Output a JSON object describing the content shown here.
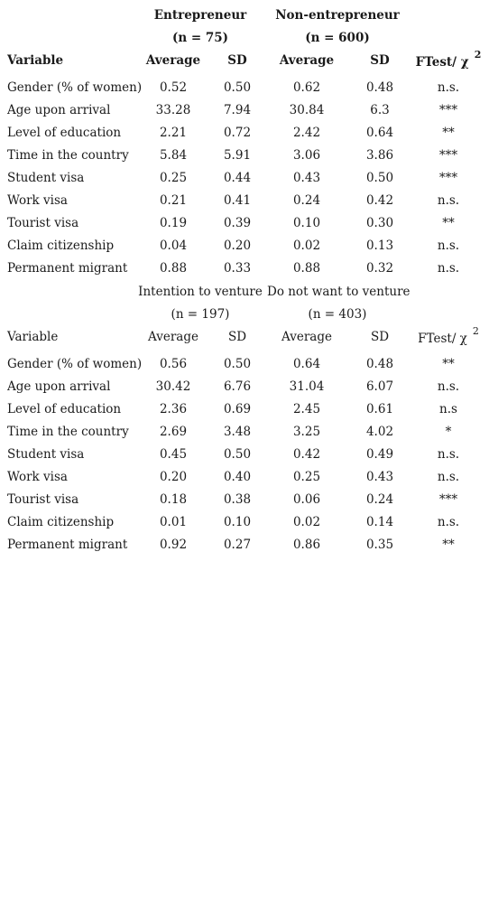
{
  "table1": {
    "group1_name": "Entrepreneur",
    "group1_n": "(n = 75)",
    "group2_name": "Non-entrepreneur",
    "group2_n": "(n = 600)",
    "headers": {
      "variable": "Variable",
      "avg1": "Average",
      "sd1": "SD",
      "avg2": "Average",
      "sd2": "SD",
      "ftest": "FTest/ χ",
      "ftest_sup": "2"
    },
    "rows": [
      {
        "variable": "Gender (% of women)",
        "avg1": "0.52",
        "sd1": "0.50",
        "avg2": "0.62",
        "sd2": "0.48",
        "ftest": "n.s."
      },
      {
        "variable": "Age upon arrival",
        "avg1": "33.28",
        "sd1": "7.94",
        "avg2": "30.84",
        "sd2": "6.3",
        "ftest": "***"
      },
      {
        "variable": "Level of education",
        "avg1": "2.21",
        "sd1": "0.72",
        "avg2": "2.42",
        "sd2": "0.64",
        "ftest": "**"
      },
      {
        "variable": "Time in the country",
        "avg1": "5.84",
        "sd1": "5.91",
        "avg2": "3.06",
        "sd2": "3.86",
        "ftest": "***"
      },
      {
        "variable": "Student visa",
        "avg1": "0.25",
        "sd1": "0.44",
        "avg2": "0.43",
        "sd2": "0.50",
        "ftest": "***"
      },
      {
        "variable": "Work visa",
        "avg1": "0.21",
        "sd1": "0.41",
        "avg2": "0.24",
        "sd2": "0.42",
        "ftest": "n.s."
      },
      {
        "variable": "Tourist visa",
        "avg1": "0.19",
        "sd1": "0.39",
        "avg2": "0.10",
        "sd2": "0.30",
        "ftest": "**"
      },
      {
        "variable": "Claim citizenship",
        "avg1": "0.04",
        "sd1": "0.20",
        "avg2": "0.02",
        "sd2": "0.13",
        "ftest": "n.s."
      },
      {
        "variable": "Permanent migrant",
        "avg1": "0.88",
        "sd1": "0.33",
        "avg2": "0.88",
        "sd2": "0.32",
        "ftest": "n.s."
      }
    ]
  },
  "table2": {
    "group1_name": "Intention to venture",
    "group1_n": "(n = 197)",
    "group2_name": "Do not want to venture",
    "group2_n": "(n = 403)",
    "headers": {
      "variable": "Variable",
      "avg1": "Average",
      "sd1": "SD",
      "avg2": "Average",
      "sd2": "SD",
      "ftest": "FTest/ χ",
      "ftest_sup": "2"
    },
    "rows": [
      {
        "variable": "Gender (% of women)",
        "avg1": "0.56",
        "sd1": "0.50",
        "avg2": "0.64",
        "sd2": "0.48",
        "ftest": "**"
      },
      {
        "variable": "Age upon arrival",
        "avg1": "30.42",
        "sd1": "6.76",
        "avg2": "31.04",
        "sd2": "6.07",
        "ftest": "n.s."
      },
      {
        "variable": "Level of education",
        "avg1": "2.36",
        "sd1": "0.69",
        "avg2": "2.45",
        "sd2": "0.61",
        "ftest": "n.s"
      },
      {
        "variable": "Time in the country",
        "avg1": "2.69",
        "sd1": "3.48",
        "avg2": "3.25",
        "sd2": "4.02",
        "ftest": "*"
      },
      {
        "variable": "Student visa",
        "avg1": "0.45",
        "sd1": "0.50",
        "avg2": "0.42",
        "sd2": "0.49",
        "ftest": "n.s."
      },
      {
        "variable": "Work visa",
        "avg1": "0.20",
        "sd1": "0.40",
        "avg2": "0.25",
        "sd2": "0.43",
        "ftest": "n.s."
      },
      {
        "variable": "Tourist visa",
        "avg1": "0.18",
        "sd1": "0.38",
        "avg2": "0.06",
        "sd2": "0.24",
        "ftest": "***"
      },
      {
        "variable": "Claim citizenship",
        "avg1": "0.01",
        "sd1": "0.10",
        "avg2": "0.02",
        "sd2": "0.14",
        "ftest": "n.s."
      },
      {
        "variable": "Permanent migrant",
        "avg1": "0.92",
        "sd1": "0.27",
        "avg2": "0.86",
        "sd2": "0.35",
        "ftest": "**"
      }
    ]
  }
}
